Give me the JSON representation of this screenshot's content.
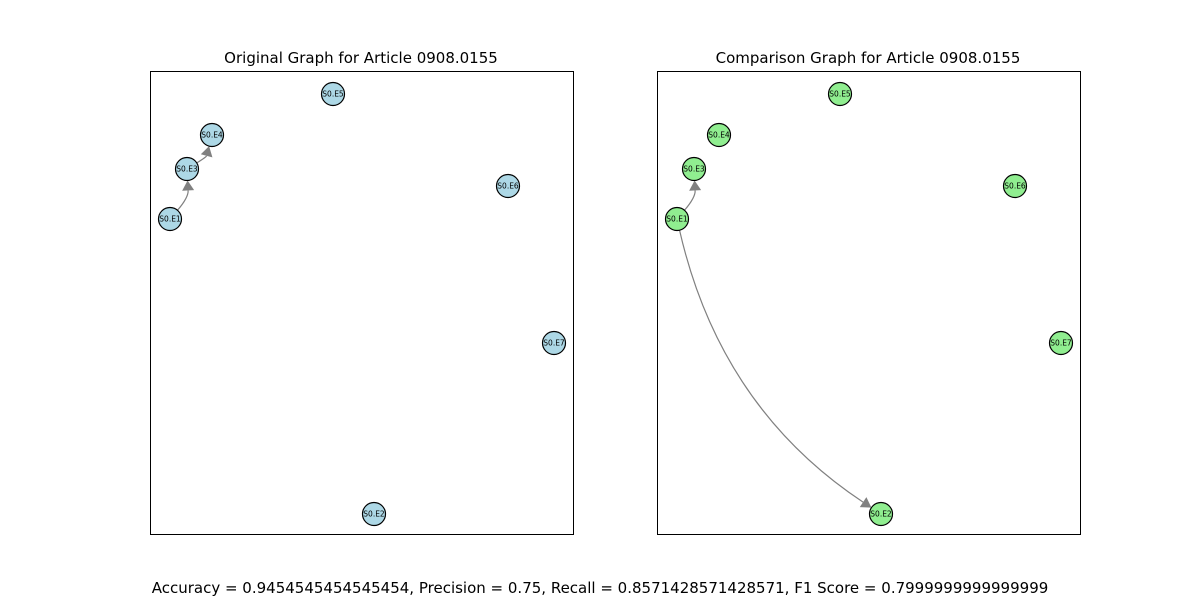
{
  "panels": [
    {
      "title": "Original Graph for Article 0908.0155",
      "node_color": "#add8e6",
      "edge_color": "#808080",
      "nodes": [
        {
          "id": "S0.E1",
          "label": "S0.E1"
        },
        {
          "id": "S0.E2",
          "label": "S0.E2"
        },
        {
          "id": "S0.E3",
          "label": "S0.E3"
        },
        {
          "id": "S0.E4",
          "label": "S0.E4"
        },
        {
          "id": "S0.E5",
          "label": "S0.E5"
        },
        {
          "id": "S0.E6",
          "label": "S0.E6"
        },
        {
          "id": "S0.E7",
          "label": "S0.E7"
        }
      ],
      "edges": [
        {
          "source": "S0.E1",
          "target": "S0.E3"
        },
        {
          "source": "S0.E3",
          "target": "S0.E4"
        }
      ]
    },
    {
      "title": "Comparison Graph for Article 0908.0155",
      "node_color": "#90ee90",
      "edge_color": "#808080",
      "nodes": [
        {
          "id": "S0.E1",
          "label": "S0.E1"
        },
        {
          "id": "S0.E2",
          "label": "S0.E2"
        },
        {
          "id": "S0.E3",
          "label": "S0.E3"
        },
        {
          "id": "S0.E4",
          "label": "S0.E4"
        },
        {
          "id": "S0.E5",
          "label": "S0.E5"
        },
        {
          "id": "S0.E6",
          "label": "S0.E6"
        },
        {
          "id": "S0.E7",
          "label": "S0.E7"
        }
      ],
      "edges": [
        {
          "source": "S0.E1",
          "target": "S0.E3"
        },
        {
          "source": "S0.E1",
          "target": "S0.E2"
        }
      ]
    }
  ],
  "metrics": "Accuracy = 0.9454545454545454, Precision = 0.75, Recall = 0.8571428571428571, F1 Score = 0.7999999999999999"
}
